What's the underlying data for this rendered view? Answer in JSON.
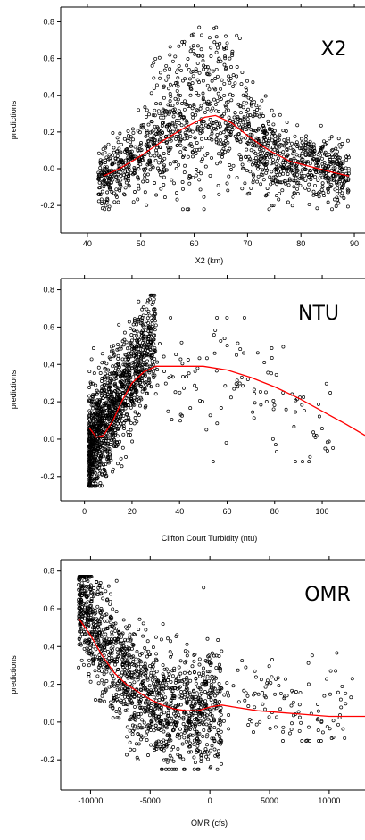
{
  "chart_data": [
    {
      "type": "scatter",
      "label": "X2",
      "xlabel": "X2 (km)",
      "ylabel": "predictions",
      "xlim": [
        35,
        92
      ],
      "ylim": [
        -0.35,
        0.88
      ],
      "xticks": [
        40,
        50,
        60,
        70,
        80,
        90
      ],
      "yticks": [
        -0.2,
        0.0,
        0.2,
        0.4,
        0.6,
        0.8
      ],
      "xtick_labels": [
        "40",
        "50",
        "60",
        "70",
        "80",
        "90"
      ],
      "ytick_labels": [
        "-0.2",
        "0.0",
        "0.2",
        "0.4",
        "0.6",
        "0.8"
      ],
      "series": [
        {
          "kind": "points",
          "color": "#000000",
          "x_range": [
            42,
            89
          ],
          "y_range": [
            -0.22,
            0.77
          ]
        },
        {
          "kind": "smooth",
          "color": "#ff0000",
          "x": [
            43,
            46,
            50,
            54,
            58,
            62,
            64,
            67,
            70,
            74,
            78,
            82,
            86,
            89
          ],
          "y": [
            -0.04,
            0.0,
            0.07,
            0.15,
            0.22,
            0.28,
            0.29,
            0.25,
            0.18,
            0.1,
            0.04,
            0.01,
            -0.02,
            -0.04
          ]
        }
      ]
    },
    {
      "type": "scatter",
      "label": "NTU",
      "xlabel": "Clifton Court Turbidity (ntu)",
      "ylabel": "predictions",
      "xlim": [
        -10,
        118
      ],
      "ylim": [
        -0.33,
        0.86
      ],
      "xticks": [
        0,
        20,
        40,
        60,
        80,
        100
      ],
      "yticks": [
        -0.2,
        0.0,
        0.2,
        0.4,
        0.6,
        0.8
      ],
      "xtick_labels": [
        "0",
        "20",
        "40",
        "60",
        "80",
        "100"
      ],
      "ytick_labels": [
        "-0.2",
        "0.0",
        "0.2",
        "0.4",
        "0.6",
        "0.8"
      ],
      "series": [
        {
          "kind": "points",
          "color": "#000000",
          "x_range": [
            2,
            105
          ],
          "y_range": [
            -0.25,
            0.77
          ]
        },
        {
          "kind": "smooth",
          "color": "#ff0000",
          "x": [
            2,
            5,
            8,
            12,
            16,
            20,
            25,
            30,
            40,
            50,
            60,
            70,
            80,
            90,
            100,
            110,
            118
          ],
          "y": [
            0.06,
            0.01,
            0.02,
            0.1,
            0.21,
            0.3,
            0.36,
            0.39,
            0.39,
            0.39,
            0.37,
            0.33,
            0.28,
            0.22,
            0.15,
            0.08,
            0.02
          ]
        }
      ]
    },
    {
      "type": "scatter",
      "label": "OMR",
      "xlabel": "OMR (cfs)",
      "ylabel": "predictions",
      "xlim": [
        -12500,
        13000
      ],
      "ylim": [
        -0.36,
        0.86
      ],
      "xticks": [
        -10000,
        -5000,
        0,
        5000,
        10000
      ],
      "yticks": [
        -0.2,
        0.0,
        0.2,
        0.4,
        0.6,
        0.8
      ],
      "xtick_labels": [
        "-10000",
        "-5000",
        "0",
        "5000",
        "10000"
      ],
      "ytick_labels": [
        "-0.2",
        "0.0",
        "0.2",
        "0.4",
        "0.6",
        "0.8"
      ],
      "series": [
        {
          "kind": "points",
          "color": "#000000",
          "x_range": [
            -11000,
            12000
          ],
          "y_range": [
            -0.25,
            0.77
          ]
        },
        {
          "kind": "smooth",
          "color": "#ff0000",
          "x": [
            -11000,
            -10000,
            -9000,
            -8000,
            -7000,
            -6000,
            -5000,
            -4000,
            -3000,
            -2000,
            -1000,
            0,
            1000,
            2000,
            4000,
            6000,
            8000,
            10000,
            13000
          ],
          "y": [
            0.55,
            0.46,
            0.35,
            0.26,
            0.2,
            0.16,
            0.12,
            0.09,
            0.07,
            0.06,
            0.06,
            0.08,
            0.09,
            0.08,
            0.06,
            0.05,
            0.04,
            0.03,
            0.03
          ]
        }
      ]
    }
  ]
}
